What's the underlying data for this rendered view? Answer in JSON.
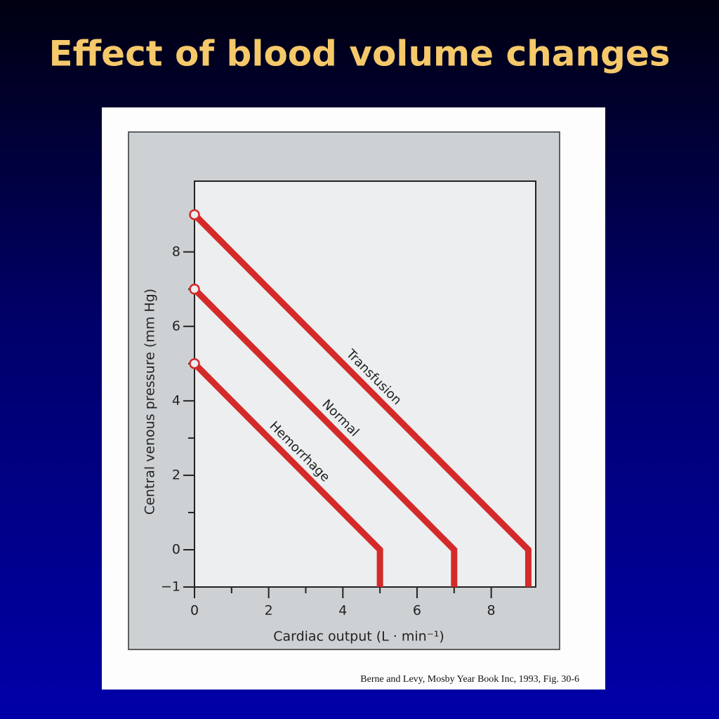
{
  "chart_data": {
    "type": "line",
    "title": "Effect of blood volume changes",
    "x_label": "Cardiac output  (L · min⁻¹)",
    "y_label": "Central venous pressure  (mm Hg)",
    "source": "Berne and Levy, Mosby Year Book Inc, 1993, Fig. 30-6",
    "xlim": [
      0,
      9.2
    ],
    "ylim": [
      -1,
      9.9
    ],
    "xticks": [
      0,
      2,
      4,
      6,
      8
    ],
    "x_minor_ticks": [
      1,
      3,
      5,
      7
    ],
    "yticks": [
      {
        "value": -1,
        "label": "−1"
      },
      0,
      2,
      4,
      6,
      8
    ],
    "y_minor_ticks": [
      1,
      3,
      5,
      7
    ],
    "series": [
      {
        "name": "Hemorrhage",
        "color": "#d42a2a",
        "x": [
          0,
          5,
          5
        ],
        "values": [
          5,
          0,
          -1
        ]
      },
      {
        "name": "Normal",
        "color": "#d42a2a",
        "x": [
          0,
          7,
          7
        ],
        "values": [
          7,
          0,
          -1
        ]
      },
      {
        "name": "Transfusion",
        "color": "#d42a2a",
        "x": [
          0,
          9,
          9
        ],
        "values": [
          9,
          0,
          -1
        ]
      }
    ]
  }
}
